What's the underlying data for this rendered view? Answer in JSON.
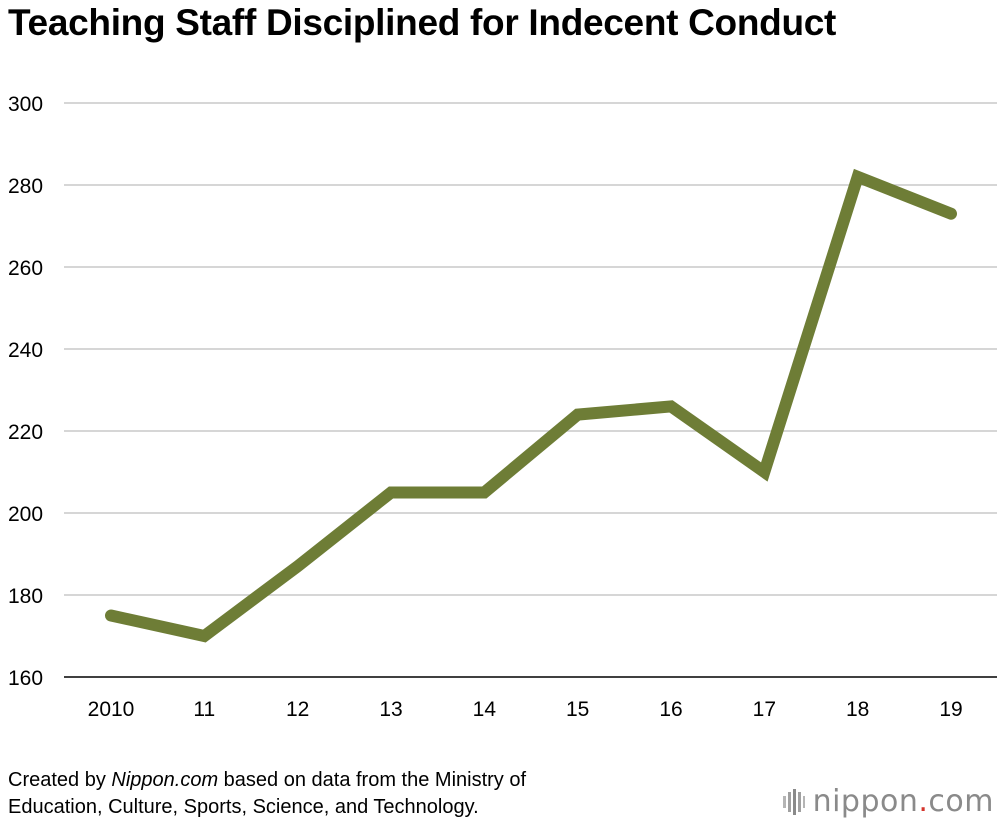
{
  "chart_data": {
    "type": "line",
    "title": "Teaching Staff Disciplined for Indecent Conduct",
    "xlabel": "",
    "ylabel": "",
    "categories": [
      "2010",
      "11",
      "12",
      "13",
      "14",
      "15",
      "16",
      "17",
      "18",
      "19"
    ],
    "series": [
      {
        "name": "Teaching staff disciplined for indecent conduct",
        "values": [
          175,
          170,
          187,
          205,
          205,
          224,
          226,
          210,
          282,
          273
        ],
        "color": "#6e7d36"
      }
    ],
    "ylim": [
      160,
      300
    ],
    "yticks": [
      160,
      180,
      200,
      220,
      240,
      260,
      280,
      300
    ],
    "grid": true,
    "legend": "none"
  },
  "source": {
    "prefix": "Created by ",
    "site": "Nippon.com",
    "line1_rest": " based on data from the Ministry of",
    "line2": "Education, Culture, Sports, Science, and Technology."
  },
  "brand": {
    "name": "nippon",
    "dot": ".",
    "suffix": "com",
    "gray": "#8a8a8a",
    "red": "#d4342c"
  }
}
